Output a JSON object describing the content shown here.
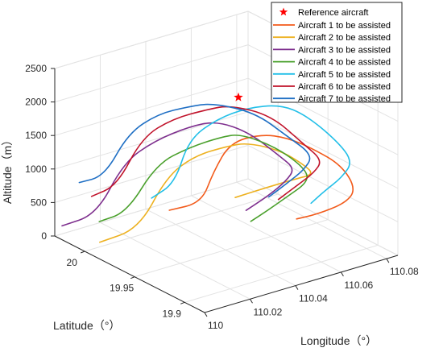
{
  "chart_data": {
    "type": "line",
    "projection": "3d",
    "xlabel": "Longitude（°）",
    "ylabel": "Latitude（°）",
    "zlabel": "Altitude（m）",
    "x_ticks": [
      "110",
      "110.02",
      "110.04",
      "110.06",
      "110.08"
    ],
    "y_ticks": [
      "19.9",
      "19.95",
      "20"
    ],
    "z_ticks": [
      "0",
      "500",
      "1000",
      "1500",
      "2000",
      "2500"
    ],
    "xlim": [
      110,
      110.085
    ],
    "ylim": [
      19.88,
      20.03
    ],
    "zlim": [
      0,
      2500
    ],
    "grid": true,
    "legend_position": "top-right",
    "reference": {
      "name": "Reference aircraft",
      "color": "#ff0000",
      "marker": "star",
      "point": [
        110.05,
        19.96,
        2100
      ]
    },
    "series": [
      {
        "name": "Aircraft 1 to be assisted",
        "color": "#f25a1a",
        "points": [
          [
            110.035,
            19.995,
            300
          ],
          [
            110.047,
            19.99,
            330
          ],
          [
            110.05,
            19.985,
            800
          ],
          [
            110.053,
            19.975,
            1280
          ],
          [
            110.06,
            19.96,
            1450
          ],
          [
            110.065,
            19.945,
            1460
          ],
          [
            110.072,
            19.935,
            1300
          ],
          [
            110.08,
            19.925,
            1050
          ],
          [
            110.082,
            19.915,
            750
          ],
          [
            110.075,
            19.91,
            650
          ],
          [
            110.065,
            19.915,
            550
          ],
          [
            110.058,
            19.92,
            510
          ]
        ]
      },
      {
        "name": "Aircraft 2 to be assisted",
        "color": "#edb120",
        "points": [
          [
            110.0,
            19.985,
            250
          ],
          [
            110.015,
            19.98,
            340
          ],
          [
            110.025,
            19.975,
            1050
          ],
          [
            110.035,
            19.97,
            1300
          ],
          [
            110.045,
            19.96,
            1420
          ],
          [
            110.052,
            19.955,
            1440
          ],
          [
            110.062,
            19.945,
            1300
          ],
          [
            110.068,
            19.935,
            1100
          ],
          [
            110.07,
            19.93,
            980
          ],
          [
            110.064,
            19.935,
            930
          ],
          [
            110.053,
            19.94,
            870
          ],
          [
            110.042,
            19.945,
            800
          ]
        ]
      },
      {
        "name": "Aircraft 3 to be assisted",
        "color": "#7e2f8e",
        "points": [
          [
            109.99,
            20.0,
            480
          ],
          [
            110.003,
            19.995,
            560
          ],
          [
            110.012,
            19.988,
            1300
          ],
          [
            110.022,
            19.98,
            1580
          ],
          [
            110.035,
            19.975,
            1700
          ],
          [
            110.045,
            19.97,
            1720
          ],
          [
            110.055,
            19.96,
            1520
          ],
          [
            110.063,
            19.948,
            1180
          ],
          [
            110.066,
            19.94,
            1030
          ],
          [
            110.06,
            19.935,
            940
          ],
          [
            110.05,
            19.93,
            860
          ],
          [
            110.038,
            19.925,
            800
          ]
        ]
      },
      {
        "name": "Aircraft 4 to be assisted",
        "color": "#4aa02c",
        "points": [
          [
            110.002,
            19.99,
            500
          ],
          [
            110.012,
            19.985,
            580
          ],
          [
            110.022,
            19.978,
            1250
          ],
          [
            110.033,
            19.97,
            1450
          ],
          [
            110.043,
            19.962,
            1560
          ],
          [
            110.05,
            19.958,
            1570
          ],
          [
            110.06,
            19.945,
            1370
          ],
          [
            110.068,
            19.935,
            1060
          ],
          [
            110.067,
            19.928,
            920
          ],
          [
            110.055,
            19.925,
            810
          ],
          [
            110.045,
            19.92,
            760
          ],
          [
            110.037,
            19.918,
            700
          ]
        ]
      },
      {
        "name": "Aircraft 5 to be assisted",
        "color": "#22bfe8",
        "points": [
          [
            110.025,
            19.99,
            620
          ],
          [
            110.033,
            19.985,
            800
          ],
          [
            110.037,
            19.98,
            1450
          ],
          [
            110.045,
            19.97,
            1750
          ],
          [
            110.055,
            19.962,
            1880
          ],
          [
            110.065,
            19.952,
            1900
          ],
          [
            110.073,
            19.945,
            1720
          ],
          [
            110.082,
            19.935,
            1330
          ],
          [
            110.085,
            19.925,
            1060
          ],
          [
            110.078,
            19.92,
            930
          ],
          [
            110.068,
            19.915,
            860
          ],
          [
            110.06,
            19.91,
            800
          ]
        ]
      },
      {
        "name": "Aircraft 6 to be assisted",
        "color": "#c0122a",
        "points": [
          [
            110.003,
            20.0,
            790
          ],
          [
            110.012,
            19.995,
            900
          ],
          [
            110.02,
            19.988,
            1590
          ],
          [
            110.03,
            19.98,
            1830
          ],
          [
            110.042,
            19.972,
            1910
          ],
          [
            110.05,
            19.968,
            1920
          ],
          [
            110.062,
            19.955,
            1750
          ],
          [
            110.072,
            19.945,
            1300
          ],
          [
            110.076,
            19.935,
            1090
          ],
          [
            110.07,
            19.93,
            1000
          ],
          [
            110.06,
            19.925,
            940
          ],
          [
            110.05,
            19.92,
            880
          ]
        ]
      },
      {
        "name": "Aircraft 7 to be assisted",
        "color": "#1f6fc4",
        "points": [
          [
            110.002,
            20.01,
            930
          ],
          [
            110.01,
            20.003,
            1000
          ],
          [
            110.017,
            19.995,
            1630
          ],
          [
            110.027,
            19.988,
            1870
          ],
          [
            110.037,
            19.98,
            1940
          ],
          [
            110.045,
            19.975,
            1950
          ],
          [
            110.058,
            19.962,
            1780
          ],
          [
            110.068,
            19.952,
            1400
          ],
          [
            110.074,
            19.94,
            1150
          ],
          [
            110.068,
            19.935,
            1030
          ],
          [
            110.058,
            19.93,
            960
          ],
          [
            110.048,
            19.925,
            900
          ]
        ]
      }
    ]
  }
}
